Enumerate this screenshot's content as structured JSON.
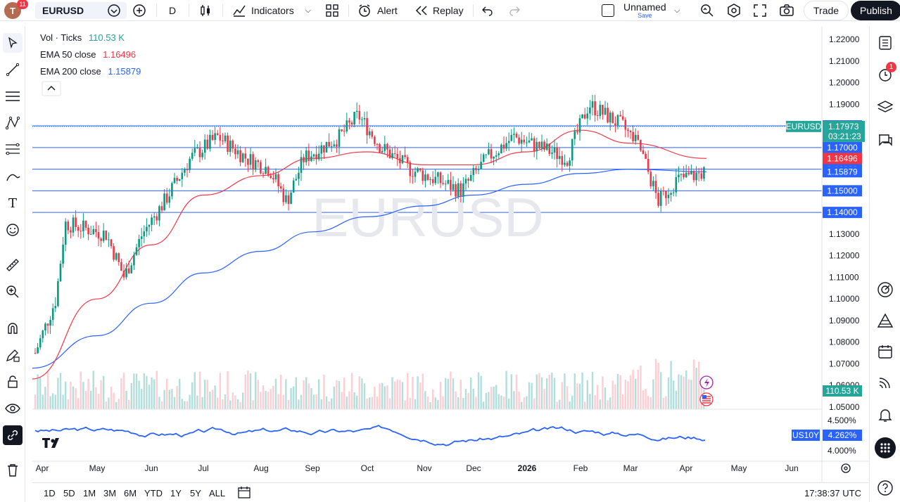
{
  "toolbar": {
    "avatar_letter": "T",
    "notif_count": "11",
    "symbol": "EURUSD",
    "interval": "D",
    "indicators_label": "Indicators",
    "alert_label": "Alert",
    "replay_label": "Replay",
    "layout_name": "Unnamed",
    "save_label": "Save",
    "trade_label": "Trade",
    "publish_label": "Publish"
  },
  "legend": {
    "vol_label": "Vol · Ticks",
    "vol_value": "110.53 K",
    "ema50_label": "EMA 50 close",
    "ema50_value": "1.16496",
    "ema200_label": "EMA 200 close",
    "ema200_value": "1.15879"
  },
  "watermark": "EURUSD",
  "price_axis": {
    "ticks": [
      "1.22000",
      "1.21000",
      "1.20000",
      "1.19000",
      "1.13000",
      "1.12000",
      "1.11000",
      "1.10000",
      "1.09000",
      "1.08000",
      "1.07000",
      "1.06000",
      "1.05000"
    ],
    "hline_labels": [
      "1.18000",
      "1.17000",
      "1.16000",
      "1.15000",
      "1.14000"
    ],
    "current_price": "1.17973",
    "countdown": "03:21:23",
    "symbol_tag": "EURUSD",
    "ema50_tag": "1.16496",
    "ema200_tag": "1.15879",
    "volume_tag": "110.53 K"
  },
  "sub_pane": {
    "ticks": [
      "4.500%",
      "4.000%"
    ],
    "symbol_tag": "US10Y",
    "value_tag": "4.262%"
  },
  "time_axis": [
    "Apr",
    "May",
    "Jun",
    "Jul",
    "Aug",
    "Sep",
    "Oct",
    "Nov",
    "Dec",
    "2026",
    "Feb",
    "Mar",
    "Apr",
    "May",
    "Jun"
  ],
  "ranges": [
    "1D",
    "5D",
    "1M",
    "3M",
    "6M",
    "YTD",
    "1Y",
    "5Y",
    "ALL"
  ],
  "clock": "17:38:37 UTC",
  "right_badge": "1",
  "colors": {
    "up": "#089981",
    "down": "#f23645",
    "ema50": "#f23645",
    "ema200": "#2962ff",
    "hline": "#2962ff"
  },
  "chart_data": {
    "type": "candlestick",
    "symbol": "EURUSD",
    "interval": "D",
    "x_axis": [
      "Apr",
      "May",
      "Jun",
      "Jul",
      "Aug",
      "Sep",
      "Oct",
      "Nov",
      "Dec",
      "2026",
      "Feb",
      "Mar",
      "Apr",
      "May",
      "Jun"
    ],
    "ylim": [
      1.05,
      1.22
    ],
    "horizontal_levels": [
      1.14,
      1.15,
      1.16,
      1.17,
      1.18
    ],
    "last_price": 1.17973,
    "ema50": 1.16496,
    "ema200": 1.15879,
    "volume_last": "110.53 K",
    "close_path": [
      {
        "x": "Apr",
        "y": 1.075
      },
      {
        "x": "Apr",
        "y": 1.1
      },
      {
        "x": "Apr",
        "y": 1.135
      },
      {
        "x": "May",
        "y": 1.13
      },
      {
        "x": "May",
        "y": 1.11
      },
      {
        "x": "May",
        "y": 1.13
      },
      {
        "x": "Jun",
        "y": 1.145
      },
      {
        "x": "Jun",
        "y": 1.165
      },
      {
        "x": "Jul",
        "y": 1.175
      },
      {
        "x": "Jul",
        "y": 1.165
      },
      {
        "x": "Aug",
        "y": 1.16
      },
      {
        "x": "Aug",
        "y": 1.145
      },
      {
        "x": "Aug",
        "y": 1.165
      },
      {
        "x": "Sep",
        "y": 1.17
      },
      {
        "x": "Sep",
        "y": 1.175
      },
      {
        "x": "Sep",
        "y": 1.185
      },
      {
        "x": "Oct",
        "y": 1.17
      },
      {
        "x": "Oct",
        "y": 1.16
      },
      {
        "x": "Nov",
        "y": 1.155
      },
      {
        "x": "Nov",
        "y": 1.15
      },
      {
        "x": "Dec",
        "y": 1.165
      },
      {
        "x": "Dec",
        "y": 1.175
      },
      {
        "x": "2026",
        "y": 1.17
      },
      {
        "x": "2026",
        "y": 1.165
      },
      {
        "x": "Feb",
        "y": 1.19
      },
      {
        "x": "Feb",
        "y": 1.185
      },
      {
        "x": "Feb",
        "y": 1.18
      },
      {
        "x": "Mar",
        "y": 1.17
      },
      {
        "x": "Mar",
        "y": 1.145
      },
      {
        "x": "Mar",
        "y": 1.155
      },
      {
        "x": "Apr",
        "y": 1.16
      },
      {
        "x": "Apr",
        "y": 1.17
      },
      {
        "x": "Apr",
        "y": 1.17973
      }
    ],
    "ema50_path": [
      {
        "x": "Apr",
        "y": 1.063
      },
      {
        "x": "May",
        "y": 1.1
      },
      {
        "x": "Jun",
        "y": 1.125
      },
      {
        "x": "Jul",
        "y": 1.148
      },
      {
        "x": "Aug",
        "y": 1.157
      },
      {
        "x": "Sep",
        "y": 1.165
      },
      {
        "x": "Oct",
        "y": 1.168
      },
      {
        "x": "Nov",
        "y": 1.162
      },
      {
        "x": "Dec",
        "y": 1.162
      },
      {
        "x": "2026",
        "y": 1.168
      },
      {
        "x": "Feb",
        "y": 1.178
      },
      {
        "x": "Mar",
        "y": 1.172
      },
      {
        "x": "Apr",
        "y": 1.16496
      }
    ],
    "ema200_path": [
      {
        "x": "Apr",
        "y": 1.068
      },
      {
        "x": "May",
        "y": 1.083
      },
      {
        "x": "Jun",
        "y": 1.098
      },
      {
        "x": "Jul",
        "y": 1.112
      },
      {
        "x": "Aug",
        "y": 1.122
      },
      {
        "x": "Sep",
        "y": 1.131
      },
      {
        "x": "Oct",
        "y": 1.138
      },
      {
        "x": "Nov",
        "y": 1.143
      },
      {
        "x": "Dec",
        "y": 1.148
      },
      {
        "x": "2026",
        "y": 1.153
      },
      {
        "x": "Feb",
        "y": 1.158
      },
      {
        "x": "Mar",
        "y": 1.16
      },
      {
        "x": "Apr",
        "y": 1.15879
      }
    ],
    "sub_series": {
      "name": "US10Y",
      "ylim": [
        3.9,
        4.65
      ],
      "last": 4.262
    }
  }
}
